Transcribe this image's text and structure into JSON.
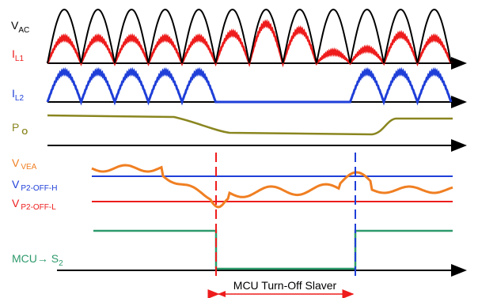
{
  "labels": {
    "vac": {
      "main": "V",
      "sub": "AC"
    },
    "il1": {
      "main": "I",
      "sub": "L1"
    },
    "il2": {
      "main": "I",
      "sub": "L2"
    },
    "po": {
      "main": "P",
      "sub": "O"
    },
    "vvea": {
      "main": "V",
      "sub": "VEA"
    },
    "vh": {
      "main": "V",
      "sub": "P2-OFF-H"
    },
    "vl": {
      "main": "V",
      "sub": "P2-OFF-L"
    },
    "mcu": {
      "main": "MCU→ S",
      "sub": "2"
    }
  },
  "interval_label": "MCU Turn-Off Slaver",
  "colors": {
    "vac": "#000000",
    "il1": "#ee1c1c",
    "il2": "#1f3fd8",
    "po": "#8a8620",
    "vvea": "#f07f22",
    "vh": "#1f3fd8",
    "vl": "#ee1c1c",
    "mcu": "#2e9a6c",
    "marker_off": "#ee1c1c",
    "marker_on": "#1f3fd8"
  }
}
